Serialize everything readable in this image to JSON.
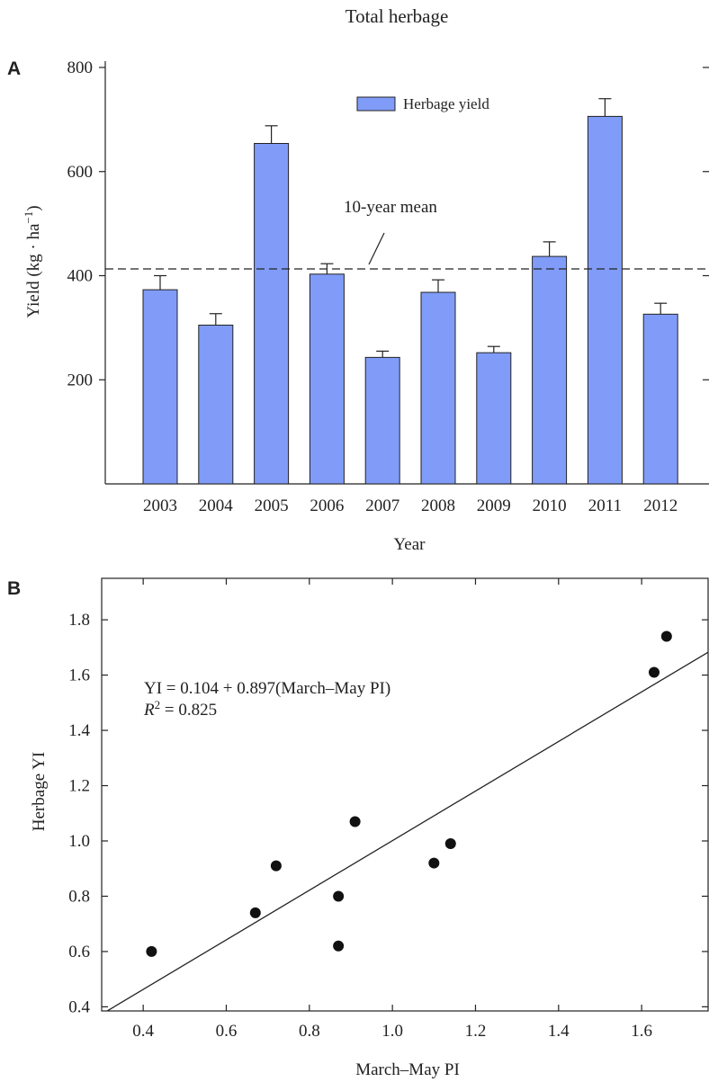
{
  "title": "Total herbage",
  "chart_data": [
    {
      "panel": "A",
      "type": "bar",
      "categories": [
        "2003",
        "2004",
        "2005",
        "2006",
        "2007",
        "2008",
        "2009",
        "2010",
        "2011",
        "2012"
      ],
      "series": [
        {
          "name": "Herbage yield",
          "values": [
            373,
            305,
            654,
            403,
            243,
            368,
            252,
            437,
            706,
            326
          ],
          "errors": [
            27,
            22,
            34,
            20,
            12,
            24,
            12,
            28,
            34,
            21
          ]
        }
      ],
      "reference_line": {
        "label": "10-year mean",
        "value": 413
      },
      "xlabel": "Year",
      "ylabel": "Yield (kg · ha",
      "ylabel_sup": "−1",
      "ylabel_close": ")",
      "ylim": [
        0,
        800
      ],
      "yticks": [
        200,
        400,
        600,
        800
      ],
      "legend": "top-center",
      "color": "#809cf8"
    },
    {
      "panel": "B",
      "type": "scatter",
      "points": [
        {
          "x": 0.42,
          "y": 0.6
        },
        {
          "x": 0.67,
          "y": 0.74
        },
        {
          "x": 0.72,
          "y": 0.91
        },
        {
          "x": 0.87,
          "y": 0.8
        },
        {
          "x": 0.87,
          "y": 0.62
        },
        {
          "x": 0.91,
          "y": 1.07
        },
        {
          "x": 1.1,
          "y": 0.92
        },
        {
          "x": 1.14,
          "y": 0.99
        },
        {
          "x": 1.63,
          "y": 1.61
        },
        {
          "x": 1.66,
          "y": 1.74
        }
      ],
      "fit": {
        "intercept": 0.104,
        "slope": 0.897
      },
      "equation": "YI = 0.104 + 0.897(March–May PI)",
      "r2_symbol": "R",
      "r2_sup": "2",
      "r2_value": " = 0.825",
      "xlabel": "March–May PI",
      "ylabel": "Herbage YI",
      "xlim": [
        0.3,
        1.76
      ],
      "ylim": [
        0.385,
        1.95
      ],
      "xticks": [
        "0.4",
        "0.6",
        "0.8",
        "1.0",
        "1.2",
        "1.4",
        "1.6"
      ],
      "yticks": [
        "0.4",
        "0.6",
        "0.8",
        "1.0",
        "1.2",
        "1.4",
        "1.6",
        "1.8"
      ]
    }
  ]
}
